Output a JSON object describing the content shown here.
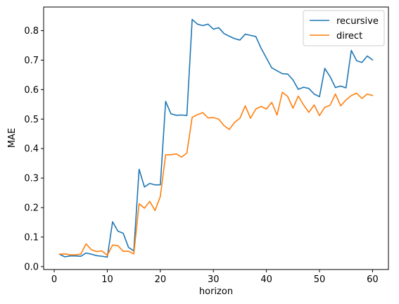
{
  "chart_data": {
    "type": "line",
    "title": "",
    "xlabel": "horizon",
    "ylabel": "MAE",
    "xlim": [
      -2,
      63
    ],
    "ylim": [
      -0.01,
      0.88
    ],
    "xticks": [
      0,
      10,
      20,
      30,
      40,
      50,
      60
    ],
    "yticks": [
      0.0,
      0.1,
      0.2,
      0.3,
      0.4,
      0.5,
      0.6,
      0.7,
      0.8
    ],
    "xtick_labels": [
      "0",
      "10",
      "20",
      "30",
      "40",
      "50",
      "60"
    ],
    "ytick_labels": [
      "0.0",
      "0.1",
      "0.2",
      "0.3",
      "0.4",
      "0.5",
      "0.6",
      "0.7",
      "0.8"
    ],
    "grid": false,
    "legend_position": "top-right",
    "x": [
      1,
      2,
      3,
      4,
      5,
      6,
      7,
      8,
      9,
      10,
      11,
      12,
      13,
      14,
      15,
      16,
      17,
      18,
      19,
      20,
      21,
      22,
      23,
      24,
      25,
      26,
      27,
      28,
      29,
      30,
      31,
      32,
      33,
      34,
      35,
      36,
      37,
      38,
      39,
      40,
      41,
      42,
      43,
      44,
      45,
      46,
      47,
      48,
      49,
      50,
      51,
      52,
      53,
      54,
      55,
      56,
      57,
      58,
      59,
      60
    ],
    "series": [
      {
        "name": "recursive",
        "color": "#1f77b4",
        "values": [
          0.042,
          0.033,
          0.036,
          0.036,
          0.035,
          0.046,
          0.042,
          0.037,
          0.035,
          0.032,
          0.152,
          0.12,
          0.113,
          0.065,
          0.053,
          0.33,
          0.27,
          0.282,
          0.277,
          0.277,
          0.56,
          0.518,
          0.513,
          0.514,
          0.512,
          0.838,
          0.822,
          0.817,
          0.822,
          0.805,
          0.81,
          0.79,
          0.781,
          0.773,
          0.768,
          0.788,
          0.784,
          0.78,
          0.74,
          0.707,
          0.674,
          0.664,
          0.654,
          0.653,
          0.633,
          0.601,
          0.608,
          0.604,
          0.585,
          0.576,
          0.672,
          0.644,
          0.607,
          0.612,
          0.606,
          0.733,
          0.698,
          0.692,
          0.714,
          0.701
        ]
      },
      {
        "name": "direct",
        "color": "#ff7f0e",
        "values": [
          0.042,
          0.043,
          0.04,
          0.04,
          0.042,
          0.077,
          0.057,
          0.051,
          0.053,
          0.038,
          0.073,
          0.071,
          0.052,
          0.052,
          0.043,
          0.213,
          0.198,
          0.221,
          0.19,
          0.238,
          0.379,
          0.379,
          0.382,
          0.371,
          0.385,
          0.506,
          0.515,
          0.522,
          0.504,
          0.505,
          0.5,
          0.478,
          0.465,
          0.489,
          0.503,
          0.545,
          0.503,
          0.534,
          0.543,
          0.534,
          0.557,
          0.514,
          0.591,
          0.577,
          0.537,
          0.578,
          0.548,
          0.523,
          0.548,
          0.512,
          0.54,
          0.547,
          0.585,
          0.545,
          0.565,
          0.58,
          0.588,
          0.57,
          0.585,
          0.58
        ]
      }
    ]
  }
}
